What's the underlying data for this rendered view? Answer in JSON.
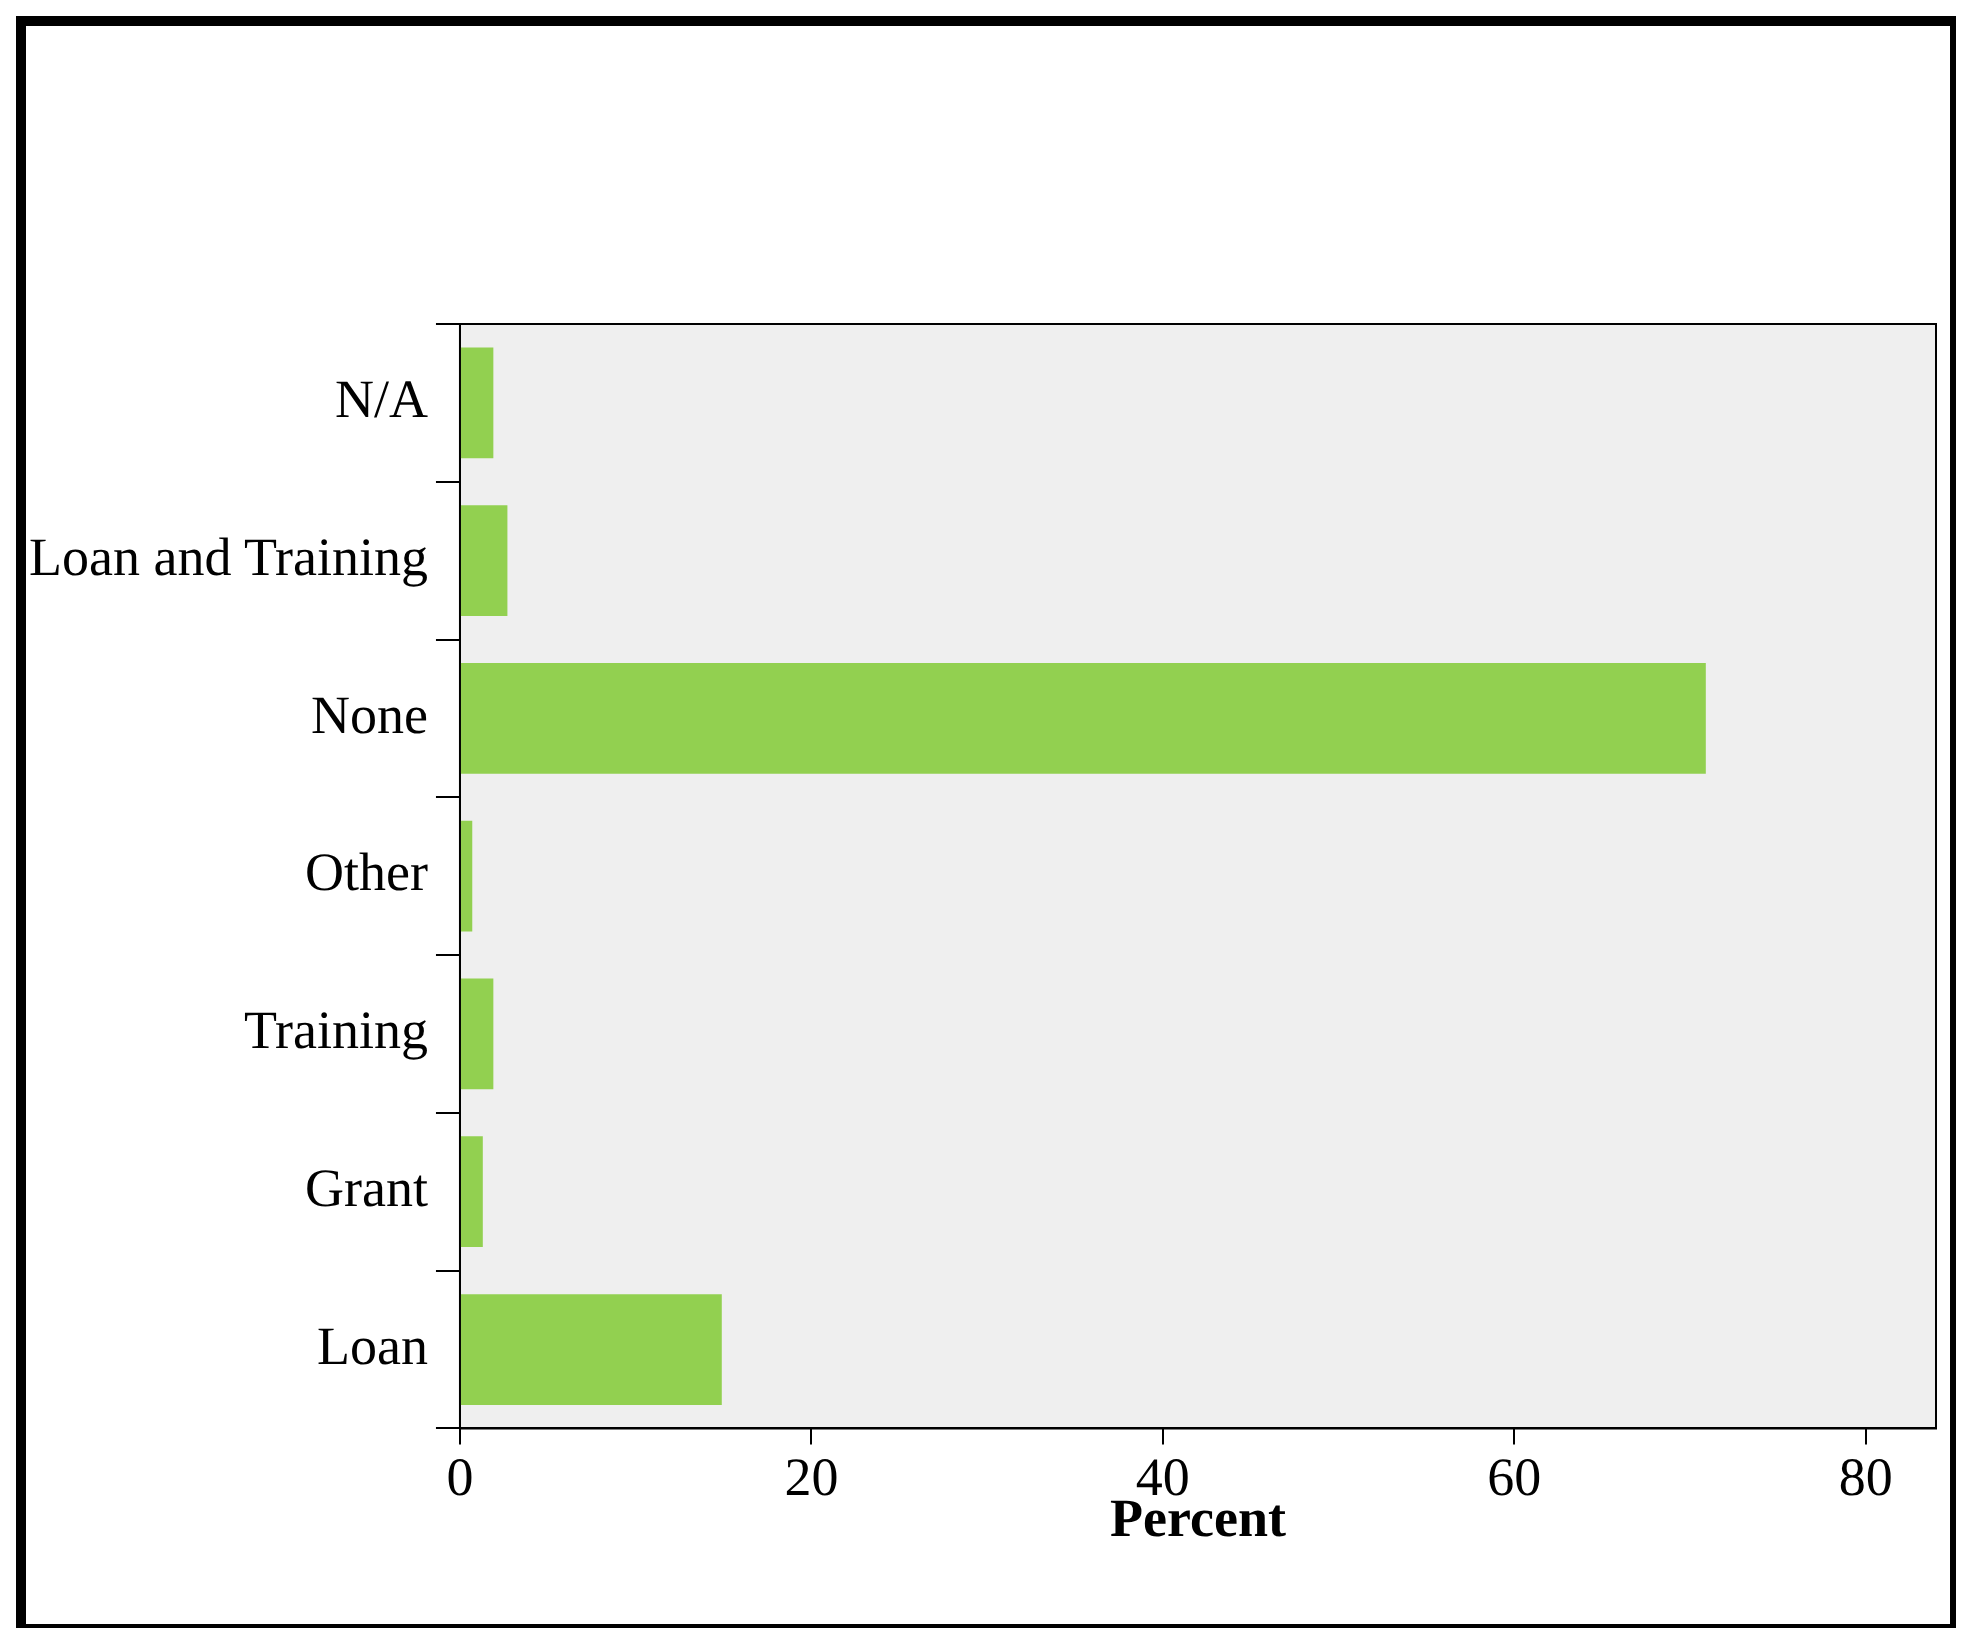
{
  "chart_data": {
    "type": "bar",
    "orientation": "horizontal",
    "xlabel": "Percent",
    "categories": [
      "N/A",
      "Loan and Training",
      "None",
      "Other",
      "Training",
      "Grant",
      "Loan"
    ],
    "values": [
      1.9,
      2.7,
      70.9,
      0.7,
      1.9,
      1.3,
      14.9
    ],
    "color": "#92d050",
    "xlim": [
      0,
      84
    ],
    "xticks": [
      0,
      20,
      40,
      60,
      80
    ],
    "grid": false,
    "legend": false
  }
}
